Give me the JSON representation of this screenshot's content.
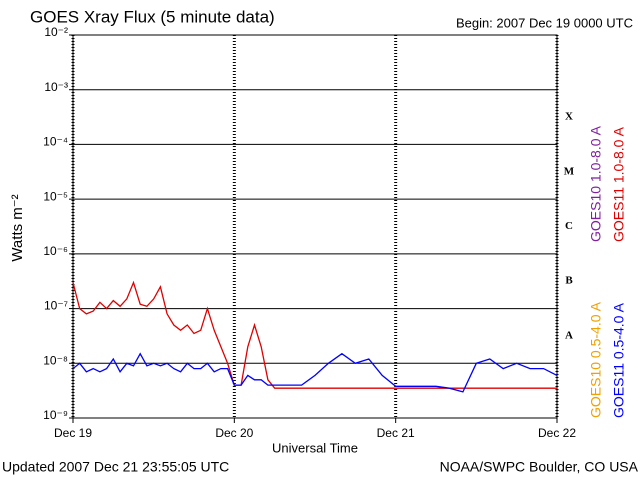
{
  "chart_data": {
    "type": "line",
    "title": "GOES Xray Flux (5 minute data)",
    "subtitle": "Begin:  2007 Dec 19 0000 UTC",
    "y_label": "Watts m⁻²",
    "x_label": "Universal Time",
    "footer_left": "Updated 2007 Dec 21 23:55:05 UTC",
    "footer_right": "NOAA/SWPC Boulder, CO USA",
    "flare_classes": [
      "A",
      "B",
      "C",
      "M",
      "X"
    ],
    "log_y": true,
    "grid": true,
    "xlim": [
      0,
      72
    ],
    "xticks": [
      {
        "value": 0,
        "label": "Dec 19"
      },
      {
        "value": 24,
        "label": "Dec 20"
      },
      {
        "value": 48,
        "label": "Dec 21"
      },
      {
        "value": 72,
        "label": "Dec 22"
      }
    ],
    "ylim": [
      1e-09,
      0.01
    ],
    "yticks": [
      {
        "value": 1e-09,
        "label": "10⁻⁹"
      },
      {
        "value": 1e-08,
        "label": "10⁻⁸"
      },
      {
        "value": 1e-07,
        "label": "10⁻⁷"
      },
      {
        "value": 1e-06,
        "label": "10⁻⁶"
      },
      {
        "value": 1e-05,
        "label": "10⁻⁵"
      },
      {
        "value": 0.0001,
        "label": "10⁻⁴"
      },
      {
        "value": 0.001,
        "label": "10⁻³"
      },
      {
        "value": 0.01,
        "label": "10⁻²"
      }
    ],
    "x": [
      0,
      1,
      2,
      3,
      4,
      5,
      6,
      7,
      8,
      9,
      10,
      11,
      12,
      13,
      14,
      15,
      16,
      17,
      18,
      19,
      20,
      21,
      22,
      23,
      24,
      25,
      26,
      27,
      28,
      29,
      30,
      32,
      34,
      36,
      38,
      40,
      42,
      44,
      46,
      48,
      50,
      52,
      54,
      56,
      58,
      60,
      62,
      64,
      66,
      68,
      70,
      72
    ],
    "series": [
      {
        "name": "GOES10 1.0-8.0 A",
        "color": "#8020a0",
        "values": [
          null,
          null,
          null,
          null,
          null,
          null,
          null,
          null,
          null,
          null,
          null,
          null,
          null,
          null,
          null,
          null,
          null,
          null,
          null,
          null,
          null,
          null,
          null,
          null,
          null,
          null,
          null,
          null,
          null,
          null,
          null,
          null,
          null,
          null,
          null,
          null,
          null,
          null,
          null,
          null,
          null,
          null,
          null,
          null,
          null,
          null,
          null,
          null,
          null,
          null,
          null,
          null
        ]
      },
      {
        "name": "GOES11 1.0-8.0 A",
        "color": "#e00000",
        "values": [
          3e-07,
          1e-07,
          8e-08,
          9e-08,
          1.3e-07,
          1e-07,
          1.4e-07,
          1.1e-07,
          1.5e-07,
          3e-07,
          1.2e-07,
          1.1e-07,
          1.5e-07,
          2.5e-07,
          8e-08,
          5e-08,
          4e-08,
          5e-08,
          3.5e-08,
          4e-08,
          1e-07,
          4e-08,
          2e-08,
          1e-08,
          4e-09,
          4e-09,
          2e-08,
          5e-08,
          2e-08,
          5e-09,
          3.5e-09,
          3.5e-09,
          3.5e-09,
          3.5e-09,
          3.5e-09,
          3.5e-09,
          3.5e-09,
          3.5e-09,
          3.5e-09,
          3.5e-09,
          3.5e-09,
          3.5e-09,
          3.5e-09,
          3.5e-09,
          3.5e-09,
          3.5e-09,
          3.5e-09,
          3.5e-09,
          3.5e-09,
          3.5e-09,
          3.5e-09,
          3.5e-09
        ]
      },
      {
        "name": "GOES10 0.5-4.0 A",
        "color": "#f0a000",
        "values": [
          null,
          null,
          null,
          null,
          null,
          null,
          null,
          null,
          null,
          null,
          null,
          null,
          null,
          null,
          null,
          null,
          null,
          null,
          null,
          null,
          null,
          null,
          null,
          null,
          null,
          null,
          null,
          null,
          null,
          null,
          null,
          null,
          null,
          null,
          null,
          null,
          null,
          null,
          null,
          null,
          null,
          null,
          null,
          null,
          null,
          null,
          null,
          null,
          null,
          null,
          null,
          null
        ]
      },
      {
        "name": "GOES11 0.5-4.0 A",
        "color": "#0000ff",
        "values": [
          8e-09,
          1e-08,
          7e-09,
          8e-09,
          7e-09,
          8e-09,
          1.2e-08,
          7e-09,
          1e-08,
          9e-09,
          1.5e-08,
          9e-09,
          1e-08,
          9e-09,
          1e-08,
          8e-09,
          7e-09,
          1e-08,
          8e-09,
          8e-09,
          1e-08,
          7e-09,
          8e-09,
          8e-09,
          4e-09,
          4e-09,
          6e-09,
          5e-09,
          5e-09,
          4e-09,
          4e-09,
          4e-09,
          4e-09,
          6e-09,
          1e-08,
          1.5e-08,
          1e-08,
          1.2e-08,
          6e-09,
          3.8e-09,
          3.8e-09,
          3.8e-09,
          3.8e-09,
          3.5e-09,
          3e-09,
          1e-08,
          1.2e-08,
          8e-09,
          1e-08,
          8e-09,
          8e-09,
          6e-09
        ]
      }
    ]
  }
}
